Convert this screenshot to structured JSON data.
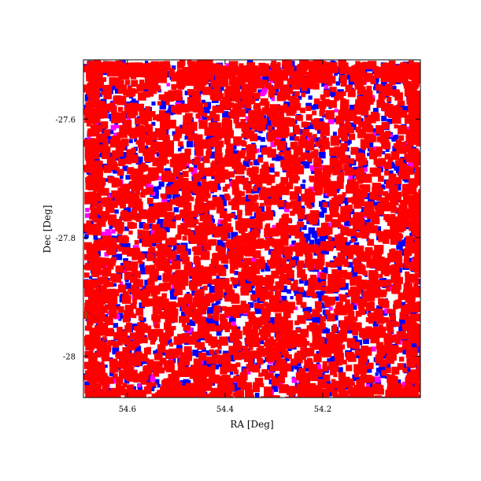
{
  "chart_data": {
    "type": "scatter",
    "title": "",
    "xlabel": "RA [Deg]",
    "ylabel": "Dec [Deg]",
    "xlim": [
      54.69,
      54.0
    ],
    "ylim": [
      -28.07,
      -27.5
    ],
    "x_ticks": [
      54.6,
      54.4,
      54.2
    ],
    "x_tick_labels": [
      "54.6",
      "54.4",
      "54.2"
    ],
    "y_ticks": [
      -27.6,
      -27.8,
      -28.0
    ],
    "y_tick_labels": [
      "-27.6",
      "-27.8",
      "-28"
    ],
    "grid": false,
    "legend": "none",
    "series": [
      {
        "color": "#ff0000",
        "marker": "square",
        "description_density": "dense"
      },
      {
        "color": "#0000ff",
        "marker": "square",
        "description_density": "dense"
      },
      {
        "color": "#ff00ff",
        "marker": "square",
        "description_density": "sparse"
      }
    ],
    "annotations": [
      {
        "type": "line",
        "color": "#00aa00",
        "points": [
          [
            54.685,
            -27.923
          ],
          [
            54.685,
            -27.938
          ]
        ]
      },
      {
        "type": "line",
        "color": "#cc0000",
        "points": [
          [
            54.685,
            -27.923
          ],
          [
            54.66,
            -27.94
          ]
        ]
      }
    ]
  }
}
